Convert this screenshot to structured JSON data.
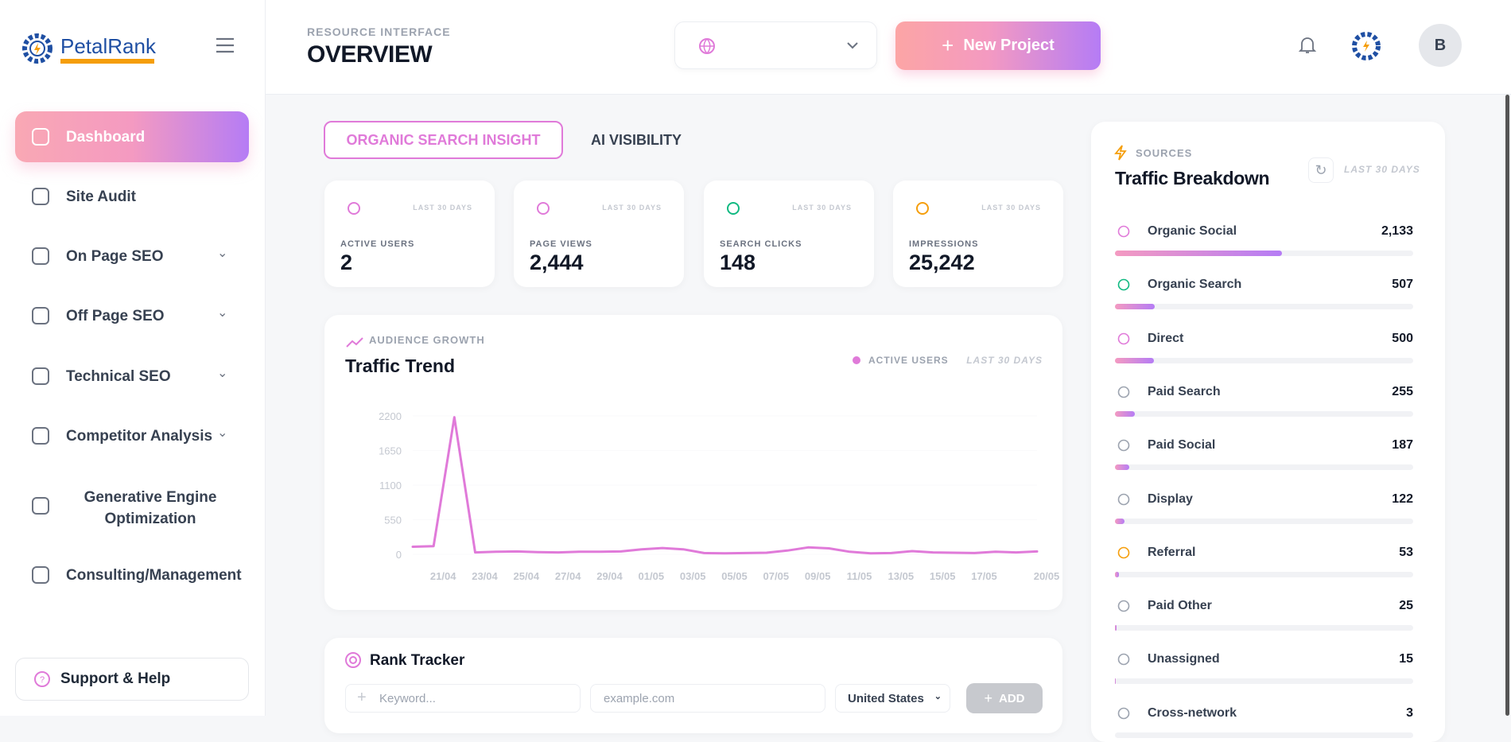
{
  "brand": {
    "name": "PetalRank"
  },
  "sidebar": {
    "items": [
      "Dashboard",
      "Site Audit",
      "On Page SEO",
      "Off Page SEO",
      "Technical SEO",
      "Competitor Analysis",
      "Generative Engine Optimization",
      "Consulting/Management"
    ],
    "support": "Support & Help"
  },
  "header": {
    "eyebrow": "RESOURCE INTERFACE",
    "title": "OVERVIEW",
    "new_project": "New Project",
    "avatar": "B"
  },
  "tabs": [
    "ORGANIC SEARCH INSIGHT",
    "AI VISIBILITY"
  ],
  "stats": [
    {
      "period": "LAST 30 DAYS",
      "label": "ACTIVE USERS",
      "value": "2"
    },
    {
      "period": "LAST 30 DAYS",
      "label": "PAGE VIEWS",
      "value": "2,444"
    },
    {
      "period": "LAST 30 DAYS",
      "label": "SEARCH CLICKS",
      "value": "148"
    },
    {
      "period": "LAST 30 DAYS",
      "label": "IMPRESSIONS",
      "value": "25,242"
    }
  ],
  "chart_data": {
    "type": "line",
    "eyebrow": "AUDIENCE GROWTH",
    "title": "Traffic Trend",
    "period": "LAST 30 DAYS",
    "categories": [
      null,
      "21/04",
      null,
      "23/04",
      null,
      "25/04",
      null,
      "27/04",
      null,
      "29/04",
      null,
      "01/05",
      null,
      "03/05",
      null,
      "05/05",
      null,
      "07/05",
      null,
      "09/05",
      null,
      "11/05",
      null,
      "13/05",
      null,
      "15/05",
      null,
      "17/05",
      null,
      null,
      "20/05"
    ],
    "series": [
      {
        "name": "ACTIVE USERS",
        "color": "#e07ad9",
        "values": [
          120,
          130,
          2180,
          30,
          40,
          45,
          35,
          30,
          40,
          40,
          45,
          80,
          100,
          80,
          20,
          15,
          20,
          25,
          60,
          110,
          95,
          40,
          15,
          20,
          50,
          30,
          25,
          20,
          40,
          30,
          45
        ]
      }
    ],
    "ylim": [
      0,
      2200
    ],
    "yticks": [
      0,
      550,
      1100,
      1650,
      2200
    ]
  },
  "rank_tracker": {
    "title": "Rank Tracker",
    "keyword_placeholder": "Keyword...",
    "domain_placeholder": "example.com",
    "country": "United States",
    "add": "ADD"
  },
  "sources": {
    "eyebrow": "SOURCES",
    "title": "Traffic Breakdown",
    "period": "LAST 30 DAYS",
    "names": [
      "Organic Social",
      "Organic Search",
      "Direct",
      "Paid Search",
      "Paid Social",
      "Display",
      "Referral",
      "Paid Other",
      "Unassigned",
      "Cross-network"
    ],
    "values": [
      2133,
      507,
      500,
      255,
      187,
      122,
      53,
      25,
      15,
      3
    ],
    "value_labels": [
      "2,133",
      "507",
      "500",
      "255",
      "187",
      "122",
      "53",
      "25",
      "15",
      "3"
    ]
  }
}
